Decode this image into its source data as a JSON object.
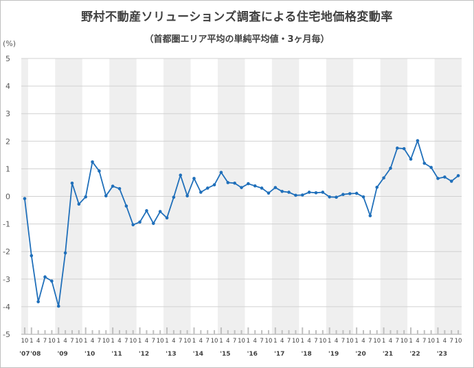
{
  "chart_data": {
    "type": "line",
    "title": "野村不動産ソリューションズ調査による住宅地価格変動率",
    "subtitle": "（首都圏エリア平均の単純平均値・3ヶ月毎）",
    "ylabel": "(%)",
    "xlabel": "",
    "ylim": [
      -5,
      5
    ],
    "yticks": [
      "5",
      "4",
      "3",
      "2",
      "1",
      "0",
      "-1",
      "-2",
      "-3",
      "-4",
      "-5"
    ],
    "grid": true,
    "legend": "none",
    "series_color": "#1f6fba",
    "x_month_labels": [
      "10",
      "1",
      "4",
      "7",
      "10",
      "1",
      "4",
      "7",
      "10",
      "1",
      "4",
      "7",
      "10",
      "1",
      "4",
      "7",
      "10",
      "1",
      "4",
      "7",
      "10",
      "1",
      "4",
      "7",
      "10",
      "1",
      "4",
      "7",
      "10",
      "1",
      "4",
      "7",
      "10",
      "1",
      "4",
      "7",
      "10",
      "1",
      "4",
      "7",
      "10",
      "1",
      "4",
      "7",
      "10",
      "1",
      "4",
      "7",
      "10",
      "1",
      "4",
      "7",
      "10",
      "1",
      "4",
      "7",
      "10",
      "1",
      "4",
      "7",
      "10",
      "1",
      "4",
      "7",
      "10"
    ],
    "x_year_labels": [
      "'07",
      "'08",
      "'09",
      "'10",
      "'11",
      "'12",
      "'13",
      "'14",
      "'15",
      "'16",
      "'17",
      "'18",
      "'19",
      "'20",
      "'21",
      "'22",
      "'23"
    ],
    "x": [
      "2007-10",
      "2008-01",
      "2008-04",
      "2008-07",
      "2008-10",
      "2009-01",
      "2009-04",
      "2009-07",
      "2009-10",
      "2010-01",
      "2010-04",
      "2010-07",
      "2010-10",
      "2011-01",
      "2011-04",
      "2011-07",
      "2011-10",
      "2012-01",
      "2012-04",
      "2012-07",
      "2012-10",
      "2013-01",
      "2013-04",
      "2013-07",
      "2013-10",
      "2014-01",
      "2014-04",
      "2014-07",
      "2014-10",
      "2015-01",
      "2015-04",
      "2015-07",
      "2015-10",
      "2016-01",
      "2016-04",
      "2016-07",
      "2016-10",
      "2017-01",
      "2017-04",
      "2017-07",
      "2017-10",
      "2018-01",
      "2018-04",
      "2018-07",
      "2018-10",
      "2019-01",
      "2019-04",
      "2019-07",
      "2019-10",
      "2020-01",
      "2020-04",
      "2020-07",
      "2020-10",
      "2021-01",
      "2021-04",
      "2021-07",
      "2021-10",
      "2022-01",
      "2022-04",
      "2022-07",
      "2022-10",
      "2023-01",
      "2023-04",
      "2023-07",
      "2023-10"
    ],
    "series": [
      {
        "values": [
          -0.08,
          -2.15,
          -3.82,
          -2.92,
          -3.07,
          -3.98,
          -2.05,
          0.48,
          -0.28,
          -0.02,
          1.25,
          0.92,
          0.02,
          0.37,
          0.28,
          -0.35,
          -1.03,
          -0.93,
          -0.52,
          -0.98,
          -0.55,
          -0.78,
          -0.03,
          0.77,
          0.02,
          0.65,
          0.15,
          0.3,
          0.42,
          0.87,
          0.5,
          0.48,
          0.32,
          0.46,
          0.38,
          0.3,
          0.12,
          0.32,
          0.18,
          0.15,
          0.04,
          0.05,
          0.15,
          0.13,
          0.15,
          -0.02,
          -0.03,
          0.07,
          0.1,
          0.11,
          -0.02,
          -0.7,
          0.33,
          0.67,
          1.02,
          1.75,
          1.73,
          1.35,
          2.02,
          1.2,
          1.05,
          0.65,
          0.7,
          0.55,
          0.75
        ]
      }
    ]
  }
}
